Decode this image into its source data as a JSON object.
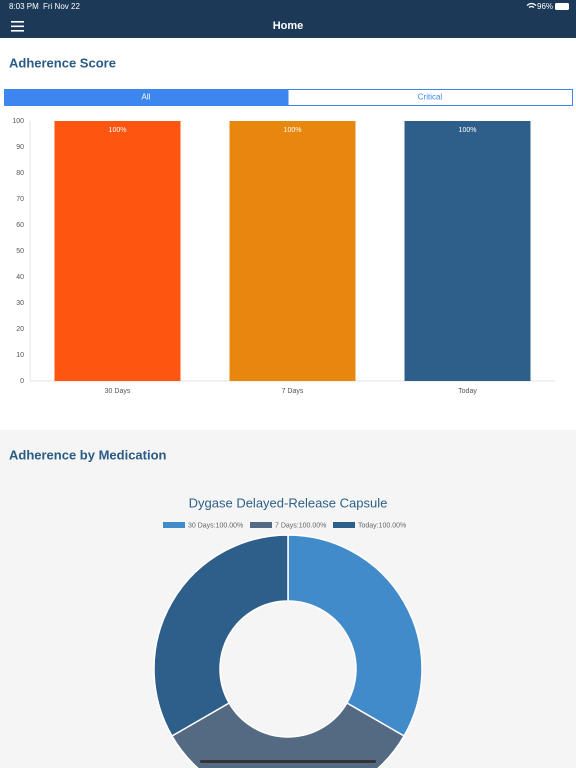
{
  "status_bar": {
    "time": "8:03 PM",
    "date": "Fri Nov 22",
    "battery": "96%"
  },
  "nav": {
    "title": "Home"
  },
  "score_section": {
    "heading": "Adherence Score",
    "tabs": [
      "All",
      "Critical"
    ]
  },
  "medication_section": {
    "heading": "Adherence by Medication"
  },
  "chart_data": [
    {
      "type": "bar",
      "categories": [
        "30 Days",
        "7 Days",
        "Today"
      ],
      "values": [
        100,
        100,
        100
      ],
      "value_labels": [
        "100%",
        "100%",
        "100%"
      ],
      "colors": [
        "#fe5511",
        "#e8870d",
        "#2e5f8a"
      ],
      "ylim": [
        0,
        100
      ],
      "yticks": [
        0,
        10,
        20,
        30,
        40,
        50,
        60,
        70,
        80,
        90,
        100
      ],
      "grid": false
    },
    {
      "type": "doughnut",
      "title": "Dygase Delayed-Release Capsule",
      "categories": [
        "30 Days:100.00%",
        "7 Days:100.00%",
        "Today:100.00%"
      ],
      "values": [
        100,
        100,
        100
      ],
      "colors": [
        "#428bca",
        "#546a82",
        "#2e5f8a"
      ]
    }
  ]
}
